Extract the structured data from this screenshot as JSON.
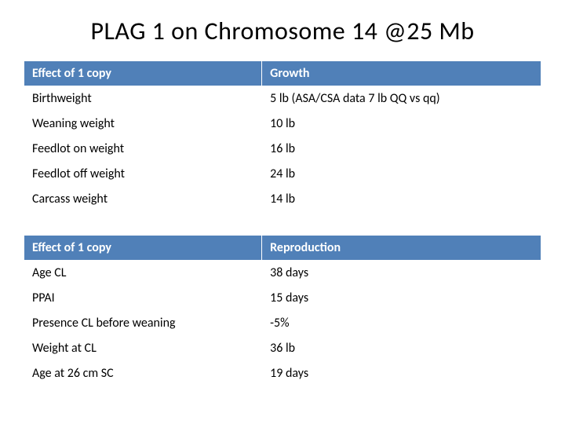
{
  "title": "PLAG 1 on Chromosome 14 @25 Mb",
  "table1": {
    "header": {
      "c1": "Effect of 1 copy",
      "c2": "Growth"
    },
    "rows": [
      {
        "c1": "Birthweight",
        "c2": "5 lb  (ASA/CSA data 7 lb QQ vs qq)"
      },
      {
        "c1": "Weaning weight",
        "c2": "10 lb"
      },
      {
        "c1": "Feedlot on weight",
        "c2": "16 lb"
      },
      {
        "c1": "Feedlot off weight",
        "c2": "24 lb"
      },
      {
        "c1": "Carcass weight",
        "c2": "14 lb"
      }
    ]
  },
  "table2": {
    "header": {
      "c1": "Effect of 1 copy",
      "c2": "Reproduction"
    },
    "rows": [
      {
        "c1": "Age CL",
        "c2": "38 days"
      },
      {
        "c1": "PPAI",
        "c2": "15 days"
      },
      {
        "c1": "Presence CL before weaning",
        "c2": "-5%"
      },
      {
        "c1": "Weight at CL",
        "c2": "36 lb"
      },
      {
        "c1": "Age at 26 cm SC",
        "c2": "19 days"
      }
    ]
  },
  "colors": {
    "header_bg": "#5080b8",
    "header_text": "#ffffff",
    "cell_text": "#000000",
    "border": "#ffffff",
    "background": "#ffffff"
  },
  "fonts": {
    "title_size": 32,
    "cell_size": 16,
    "family": "Calibri"
  }
}
